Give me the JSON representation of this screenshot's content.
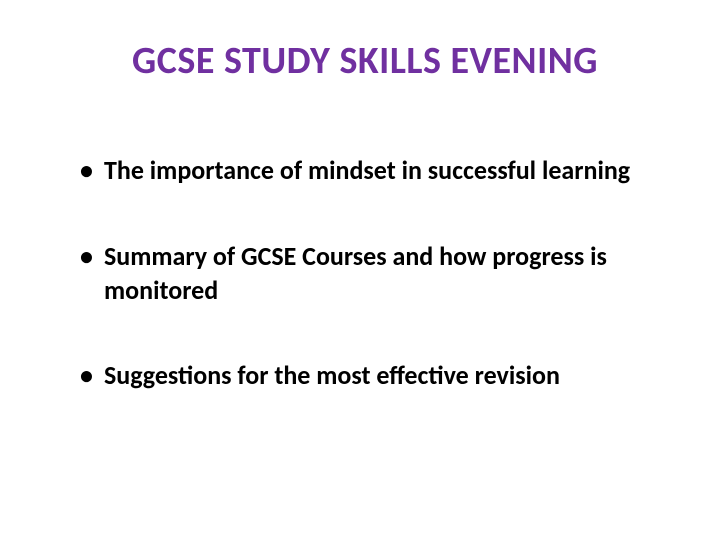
{
  "slide": {
    "title": "GCSE STUDY SKILLS EVENING",
    "title_color": "#7030a0",
    "title_fontsize": 38,
    "title_fontweight": 700,
    "bullet_color": "#000000",
    "bullet_fontsize": 26,
    "bullet_fontweight": 700,
    "background_color": "#ffffff",
    "bullets": [
      "The importance of mindset in successful learning",
      "Summary of GCSE Courses and how progress is monitored",
      "Suggestions for the most effective revision"
    ]
  }
}
